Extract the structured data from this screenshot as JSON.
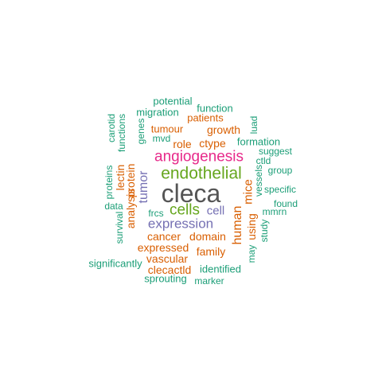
{
  "colors": {
    "dark": "#555555",
    "green": "#1b9e77",
    "orange": "#d95f02",
    "purple": "#7570b3",
    "magenta": "#e7298a",
    "olive": "#66a61e"
  },
  "words": [
    {
      "text": "cleca",
      "color": "dark",
      "orientation": "horizontal"
    },
    {
      "text": "endothelial",
      "color": "olive",
      "orientation": "horizontal"
    },
    {
      "text": "angiogenesis",
      "color": "magenta",
      "orientation": "horizontal"
    },
    {
      "text": "cells",
      "color": "olive",
      "orientation": "horizontal"
    },
    {
      "text": "expression",
      "color": "purple",
      "orientation": "horizontal"
    },
    {
      "text": "cell",
      "color": "purple",
      "orientation": "horizontal"
    },
    {
      "text": "tumor",
      "color": "purple",
      "orientation": "vertical"
    },
    {
      "text": "human",
      "color": "orange",
      "orientation": "vertical"
    },
    {
      "text": "mice",
      "color": "orange",
      "orientation": "vertical"
    },
    {
      "text": "using",
      "color": "orange",
      "orientation": "vertical"
    },
    {
      "text": "protein",
      "color": "orange",
      "orientation": "vertical"
    },
    {
      "text": "analysis",
      "color": "orange",
      "orientation": "vertical"
    },
    {
      "text": "lectin",
      "color": "orange",
      "orientation": "vertical"
    },
    {
      "text": "role",
      "color": "orange",
      "orientation": "horizontal"
    },
    {
      "text": "ctype",
      "color": "orange",
      "orientation": "horizontal"
    },
    {
      "text": "growth",
      "color": "orange",
      "orientation": "horizontal"
    },
    {
      "text": "tumour",
      "color": "orange",
      "orientation": "horizontal"
    },
    {
      "text": "patients",
      "color": "orange",
      "orientation": "horizontal"
    },
    {
      "text": "cancer",
      "color": "orange",
      "orientation": "horizontal"
    },
    {
      "text": "domain",
      "color": "orange",
      "orientation": "horizontal"
    },
    {
      "text": "expressed",
      "color": "orange",
      "orientation": "horizontal"
    },
    {
      "text": "family",
      "color": "orange",
      "orientation": "horizontal"
    },
    {
      "text": "vascular",
      "color": "orange",
      "orientation": "horizontal"
    },
    {
      "text": "clecactld",
      "color": "orange",
      "orientation": "horizontal"
    },
    {
      "text": "potential",
      "color": "green",
      "orientation": "horizontal"
    },
    {
      "text": "migration",
      "color": "green",
      "orientation": "horizontal"
    },
    {
      "text": "function",
      "color": "green",
      "orientation": "horizontal"
    },
    {
      "text": "mvd",
      "color": "green",
      "orientation": "horizontal"
    },
    {
      "text": "formation",
      "color": "green",
      "orientation": "horizontal"
    },
    {
      "text": "suggest",
      "color": "green",
      "orientation": "horizontal"
    },
    {
      "text": "ctld",
      "color": "green",
      "orientation": "horizontal"
    },
    {
      "text": "group",
      "color": "green",
      "orientation": "horizontal"
    },
    {
      "text": "specific",
      "color": "green",
      "orientation": "horizontal"
    },
    {
      "text": "found",
      "color": "green",
      "orientation": "horizontal"
    },
    {
      "text": "mmrn",
      "color": "green",
      "orientation": "horizontal"
    },
    {
      "text": "data",
      "color": "green",
      "orientation": "horizontal"
    },
    {
      "text": "frcs",
      "color": "green",
      "orientation": "horizontal"
    },
    {
      "text": "identified",
      "color": "green",
      "orientation": "horizontal"
    },
    {
      "text": "marker",
      "color": "green",
      "orientation": "horizontal"
    },
    {
      "text": "sprouting",
      "color": "green",
      "orientation": "horizontal"
    },
    {
      "text": "significantly",
      "color": "green",
      "orientation": "horizontal"
    },
    {
      "text": "carotid",
      "color": "green",
      "orientation": "vertical"
    },
    {
      "text": "functions",
      "color": "green",
      "orientation": "vertical"
    },
    {
      "text": "genes",
      "color": "green",
      "orientation": "vertical"
    },
    {
      "text": "luad",
      "color": "green",
      "orientation": "vertical"
    },
    {
      "text": "proteins",
      "color": "green",
      "orientation": "vertical"
    },
    {
      "text": "survival",
      "color": "green",
      "orientation": "vertical"
    },
    {
      "text": "vessels",
      "color": "green",
      "orientation": "vertical"
    },
    {
      "text": "study",
      "color": "green",
      "orientation": "vertical"
    },
    {
      "text": "may",
      "color": "green",
      "orientation": "vertical"
    }
  ]
}
